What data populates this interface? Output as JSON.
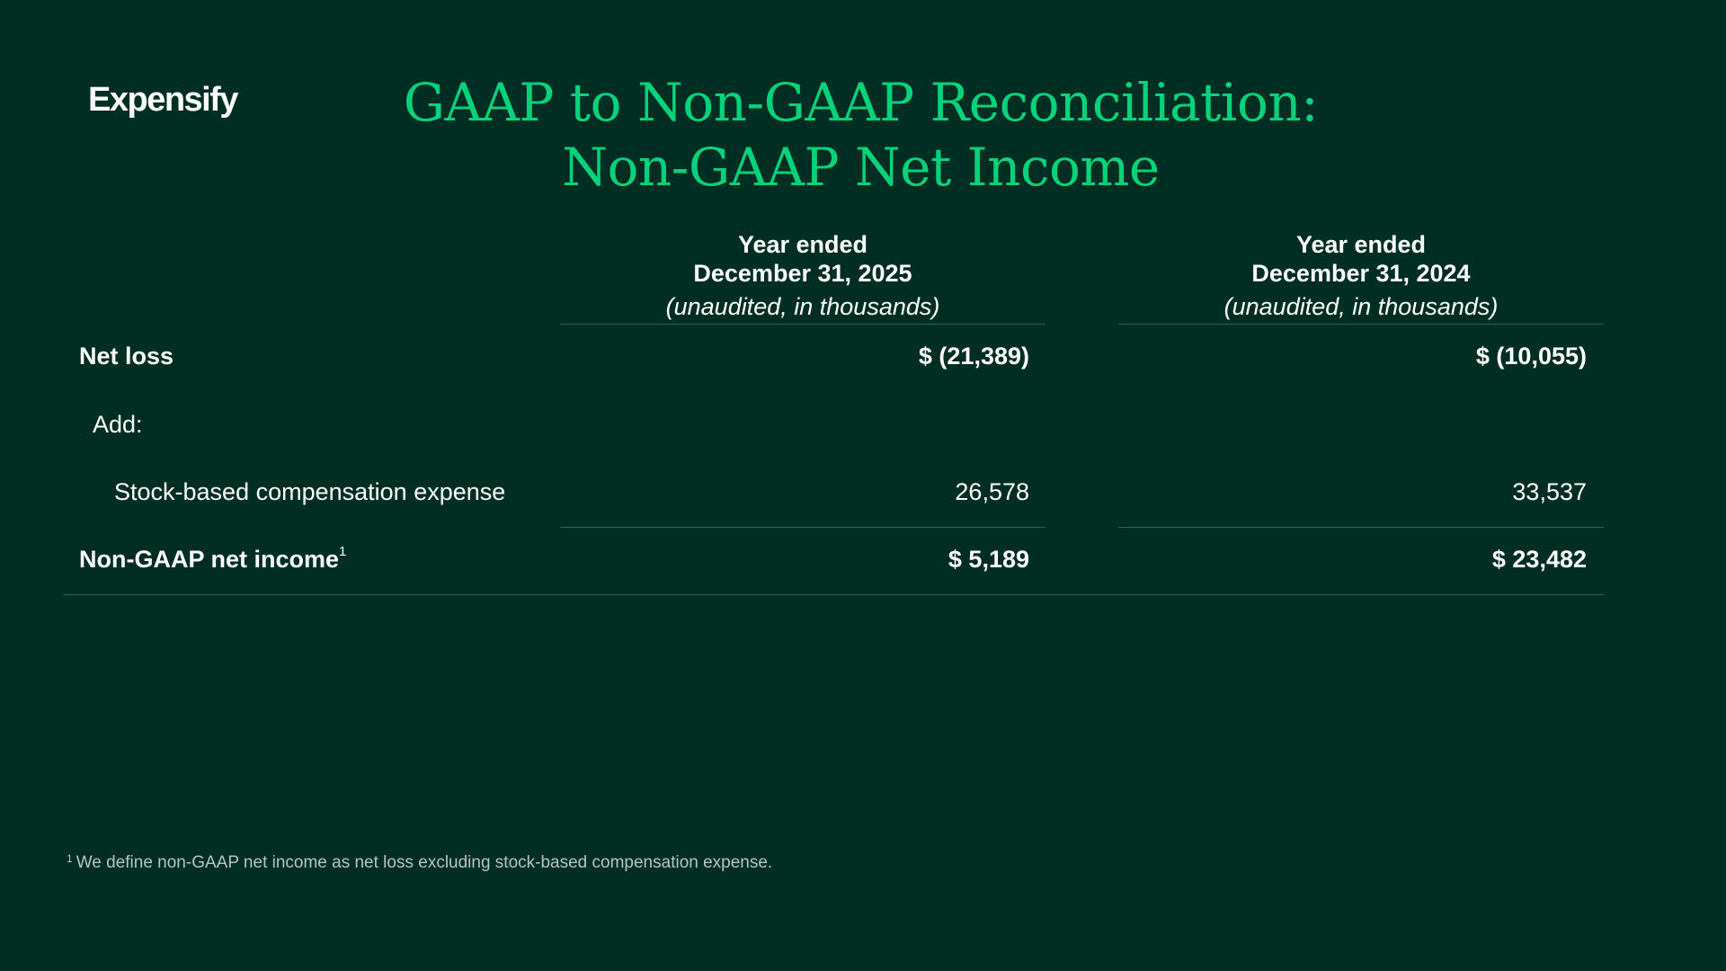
{
  "brand": {
    "logo_text": "Expensify",
    "accent_color": "#03d47c",
    "background_color": "#002e22"
  },
  "title": {
    "line1": "GAAP to Non-GAAP Reconciliation:",
    "line2": "Non-GAAP Net Income"
  },
  "columns": [
    {
      "line1": "Year ended",
      "line2": "December 31, 2025",
      "note": "(unaudited, in thousands)"
    },
    {
      "line1": "Year ended",
      "line2": "December 31, 2024",
      "note": "(unaudited, in thousands)"
    }
  ],
  "rows": {
    "net_loss": {
      "label": "Net loss",
      "values": [
        "$ (21,389)",
        "$ (10,055)"
      ]
    },
    "add": {
      "label": "Add:"
    },
    "sbc": {
      "label": "Stock-based compensation expense",
      "values": [
        "26,578",
        "33,537"
      ]
    },
    "non_gaap": {
      "label": "Non-GAAP net income",
      "footnote_marker": "1",
      "values": [
        "$ 5,189",
        "$ 23,482"
      ]
    }
  },
  "footnote": {
    "marker": "1",
    "text": "We define non-GAAP net income as net loss excluding stock-based compensation expense."
  }
}
